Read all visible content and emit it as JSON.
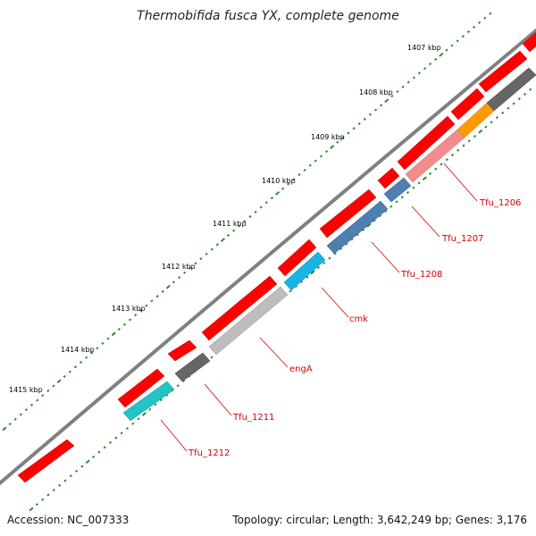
{
  "title": "Thermobifida fusca YX, complete genome",
  "accession": "Accession: NC_007333",
  "summary": "Topology: circular; Length: 3,642,249 bp; Genes: 3,176",
  "ruler": [
    "1407 kbp",
    "1408 kbp",
    "1409 kbp",
    "1410 kbp",
    "1411 kbp",
    "1412 kbp",
    "1413 kbp",
    "1414 kbp",
    "1415 kbp"
  ],
  "gene_labels": [
    "Tfu_1206",
    "Tfu_1207",
    "Tfu_1208",
    "cmk",
    "engA",
    "Tfu_1211",
    "Tfu_1212"
  ],
  "colors": {
    "backbone": "#808080",
    "cds": "#ff0000",
    "tick": "#2e8b2e",
    "label": "#d40000",
    "gene_pink": "#f28c8c",
    "gene_orange": "#ff9900",
    "gene_gray": "#666666",
    "gene_steel": "#4f7fb0",
    "gene_sky": "#19b3e6",
    "gene_silver": "#bdbdbd",
    "gene_teal": "#22c4c4"
  }
}
